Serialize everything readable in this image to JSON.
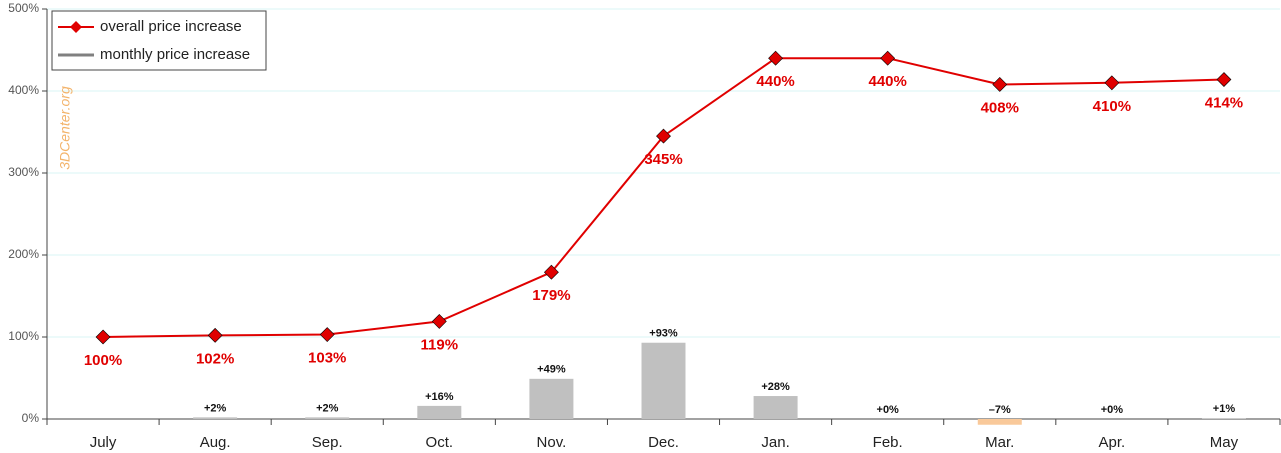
{
  "chart_data": {
    "type": "line_bar",
    "categories": [
      "July",
      "Aug.",
      "Sep.",
      "Oct.",
      "Nov.",
      "Dec.",
      "Jan.",
      "Feb.",
      "Mar.",
      "Apr.",
      "May"
    ],
    "series": [
      {
        "name": "overall price increase",
        "type": "line",
        "color": "#e00000",
        "values": [
          100,
          102,
          103,
          119,
          179,
          345,
          440,
          440,
          408,
          410,
          414
        ],
        "value_labels": [
          "100%",
          "102%",
          "103%",
          "119%",
          "179%",
          "345%",
          "440%",
          "440%",
          "408%",
          "410%",
          "414%"
        ]
      },
      {
        "name": "monthly price increase",
        "type": "bar",
        "color": "#c0c0c0",
        "negative_color": "#f9c99a",
        "values": [
          null,
          2,
          2,
          16,
          49,
          93,
          28,
          0,
          -7,
          0,
          1
        ],
        "value_labels": [
          null,
          "+2%",
          "+2%",
          "+16%",
          "+49%",
          "+93%",
          "+28%",
          "+0%",
          "–7%",
          "+0%",
          "+1%"
        ]
      }
    ],
    "ylim": [
      0,
      500
    ],
    "yticks": [
      {
        "value": 0,
        "label": "0%"
      },
      {
        "value": 100,
        "label": "100%"
      },
      {
        "value": 200,
        "label": "200%"
      },
      {
        "value": 300,
        "label": "300%"
      },
      {
        "value": 400,
        "label": "400%"
      },
      {
        "value": 500,
        "label": "500%"
      }
    ],
    "grid": true,
    "legend": "top-left",
    "watermark": "3DCenter.org"
  }
}
